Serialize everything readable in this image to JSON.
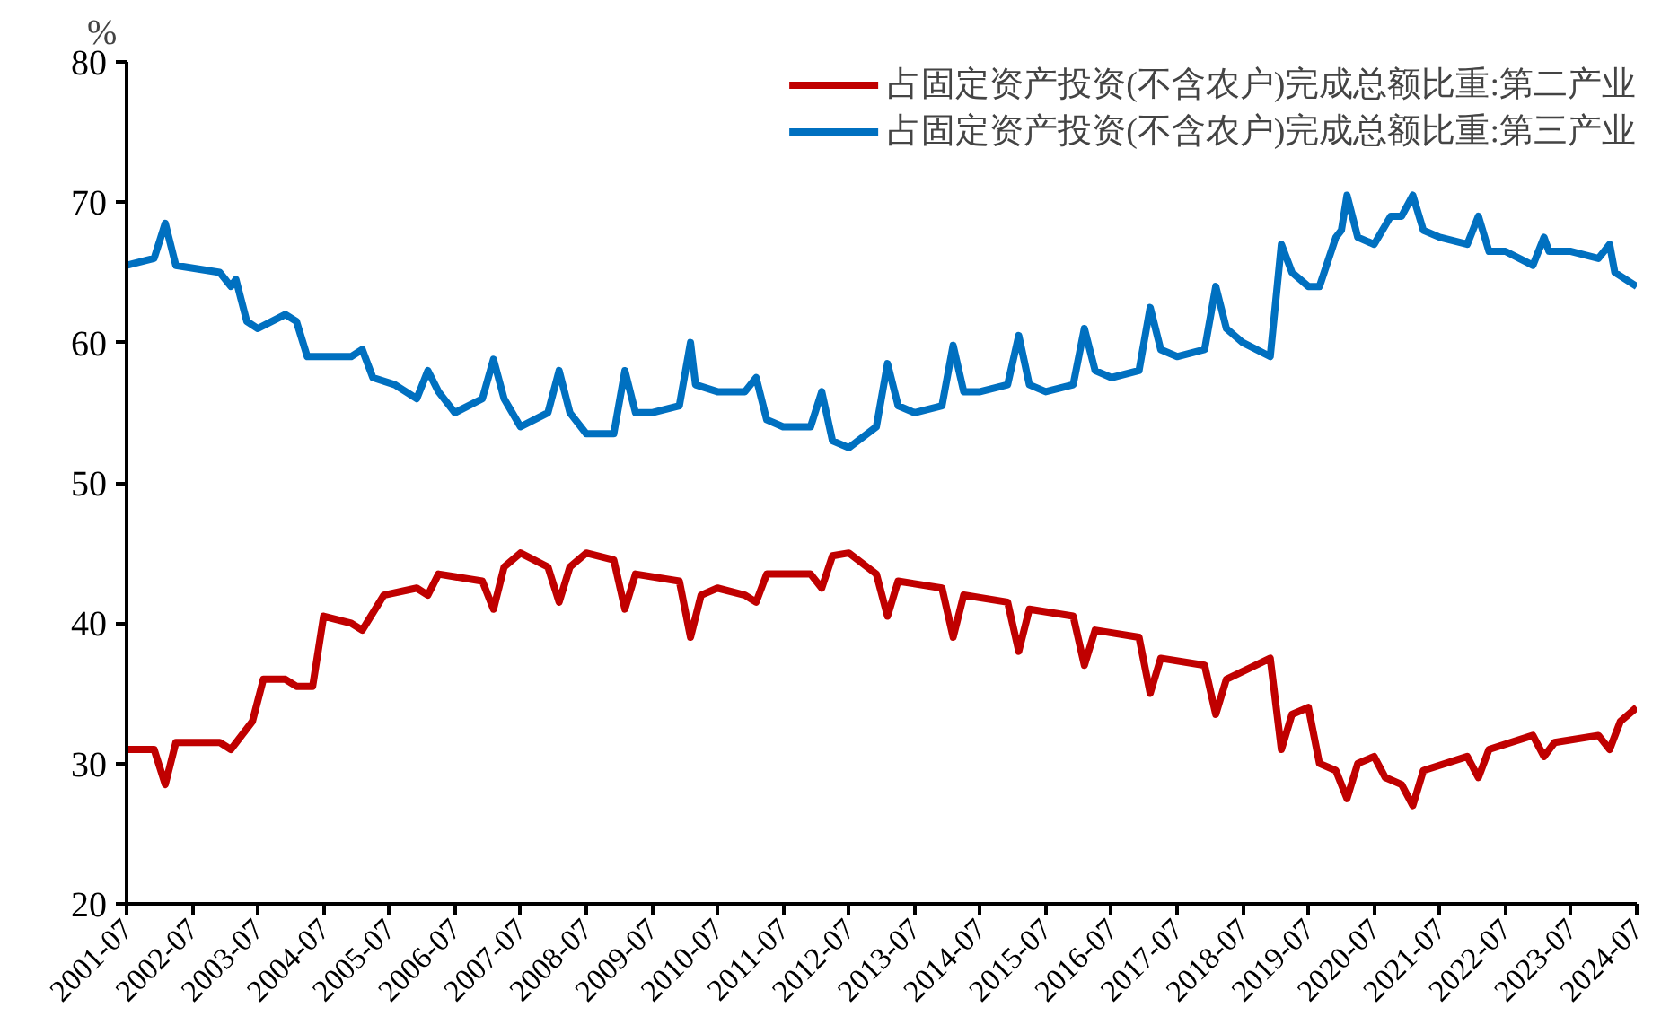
{
  "chart_data": {
    "type": "line",
    "ylabel": "%",
    "legend": "top right",
    "grid": false,
    "marker": "none",
    "line_style": "solid",
    "xlim": [
      "2001-07",
      "2024-07"
    ],
    "xticks": [
      "2001-07",
      "2002-07",
      "2003-07",
      "2004-07",
      "2005-07",
      "2006-07",
      "2007-07",
      "2008-07",
      "2009-07",
      "2010-07",
      "2011-07",
      "2012-07",
      "2013-07",
      "2014-07",
      "2015-07",
      "2016-07",
      "2017-07",
      "2018-07",
      "2019-07",
      "2020-07",
      "2021-07",
      "2022-07",
      "2023-07",
      "2024-07"
    ],
    "ylim": [
      20,
      80
    ],
    "yticks": [
      20,
      30,
      40,
      50,
      60,
      70,
      80
    ],
    "series": [
      {
        "name": "占固定资产投资(不含农户)完成总额比重:第二产业",
        "color": "#c00000",
        "x": [
          "2001-07",
          "2001-12",
          "2002-02",
          "2002-04",
          "2002-12",
          "2003-02",
          "2003-06",
          "2003-08",
          "2003-12",
          "2004-02",
          "2004-05",
          "2004-07",
          "2004-12",
          "2005-02",
          "2005-06",
          "2005-12",
          "2006-02",
          "2006-04",
          "2006-12",
          "2007-02",
          "2007-04",
          "2007-07",
          "2007-12",
          "2008-02",
          "2008-04",
          "2008-07",
          "2008-12",
          "2009-02",
          "2009-04",
          "2009-12",
          "2010-02",
          "2010-04",
          "2010-07",
          "2010-12",
          "2011-02",
          "2011-04",
          "2011-12",
          "2012-02",
          "2012-04",
          "2012-07",
          "2012-12",
          "2013-02",
          "2013-04",
          "2013-12",
          "2014-02",
          "2014-04",
          "2014-12",
          "2015-02",
          "2015-04",
          "2015-12",
          "2016-02",
          "2016-04",
          "2016-12",
          "2017-02",
          "2017-04",
          "2017-12",
          "2018-02",
          "2018-04",
          "2018-12",
          "2019-02",
          "2019-04",
          "2019-07",
          "2019-09",
          "2019-12",
          "2020-02",
          "2020-04",
          "2020-07",
          "2020-09",
          "2020-12",
          "2021-02",
          "2021-04",
          "2021-12",
          "2022-02",
          "2022-04",
          "2022-12",
          "2023-02",
          "2023-04",
          "2023-12",
          "2024-02",
          "2024-04",
          "2024-07"
        ],
        "values": [
          31,
          31,
          28.5,
          31.5,
          31.5,
          31,
          33,
          36,
          36,
          35.5,
          35.5,
          40.5,
          40,
          39.5,
          42,
          42.5,
          42,
          43.5,
          43,
          41,
          44,
          45,
          44,
          41.5,
          44,
          45,
          44.5,
          41,
          43.5,
          43,
          39,
          42,
          42.5,
          42,
          41.5,
          43.5,
          43.5,
          42.5,
          44.8,
          45,
          43.5,
          40.5,
          43,
          42.5,
          39,
          42,
          41.5,
          38,
          41,
          40.5,
          37,
          39.5,
          39,
          35,
          37.5,
          37,
          33.5,
          36,
          37.5,
          31,
          33.5,
          34,
          30,
          29.5,
          27.5,
          30,
          30.5,
          29,
          28.5,
          27,
          29.5,
          30.5,
          29,
          31,
          32,
          30.5,
          31.5,
          32,
          31,
          33,
          34
        ]
      },
      {
        "name": "占固定资产投资(不含农户)完成总额比重:第三产业",
        "color": "#0070c0",
        "x": [
          "2001-07",
          "2001-12",
          "2002-02",
          "2002-04",
          "2002-12",
          "2003-02",
          "2003-03",
          "2003-05",
          "2003-07",
          "2003-12",
          "2004-02",
          "2004-04",
          "2004-12",
          "2005-02",
          "2005-04",
          "2005-08",
          "2005-12",
          "2006-02",
          "2006-04",
          "2006-07",
          "2006-12",
          "2007-02",
          "2007-04",
          "2007-07",
          "2007-12",
          "2008-02",
          "2008-04",
          "2008-07",
          "2008-12",
          "2009-02",
          "2009-04",
          "2009-07",
          "2009-12",
          "2010-02",
          "2010-03",
          "2010-07",
          "2010-12",
          "2011-02",
          "2011-04",
          "2011-07",
          "2011-12",
          "2012-02",
          "2012-04",
          "2012-07",
          "2012-12",
          "2013-02",
          "2013-04",
          "2013-07",
          "2013-12",
          "2014-02",
          "2014-04",
          "2014-07",
          "2014-12",
          "2015-02",
          "2015-04",
          "2015-07",
          "2015-12",
          "2016-02",
          "2016-04",
          "2016-07",
          "2016-12",
          "2017-02",
          "2017-04",
          "2017-07",
          "2017-12",
          "2018-02",
          "2018-04",
          "2018-07",
          "2018-12",
          "2019-02",
          "2019-04",
          "2019-07",
          "2019-09",
          "2019-12",
          "2020-01",
          "2020-02",
          "2020-04",
          "2020-07",
          "2020-10",
          "2020-12",
          "2021-02",
          "2021-04",
          "2021-07",
          "2021-12",
          "2022-02",
          "2022-04",
          "2022-07",
          "2022-12",
          "2023-02",
          "2023-03",
          "2023-07",
          "2023-12",
          "2024-02",
          "2024-03",
          "2024-07"
        ],
        "values": [
          65.5,
          66,
          68.5,
          65.5,
          65,
          64,
          64.5,
          61.5,
          61,
          62,
          61.5,
          59,
          59,
          59.5,
          57.5,
          57,
          56,
          58,
          56.5,
          55,
          56,
          58.8,
          56,
          54,
          55,
          58,
          55,
          53.5,
          53.5,
          58,
          55,
          55,
          55.5,
          60,
          57,
          56.5,
          56.5,
          57.5,
          54.5,
          54,
          54,
          56.5,
          53,
          52.5,
          54,
          58.5,
          55.5,
          55,
          55.5,
          59.8,
          56.5,
          56.5,
          57,
          60.5,
          57,
          56.5,
          57,
          61,
          58,
          57.5,
          58,
          62.5,
          59.5,
          59,
          59.5,
          64,
          61,
          60,
          59,
          67,
          65,
          64,
          64,
          67.5,
          68,
          70.5,
          67.5,
          67,
          69,
          69,
          70.5,
          68,
          67.5,
          67,
          69,
          66.5,
          66.5,
          65.5,
          67.5,
          66.5,
          66.5,
          66,
          67,
          65,
          64
        ]
      }
    ]
  }
}
